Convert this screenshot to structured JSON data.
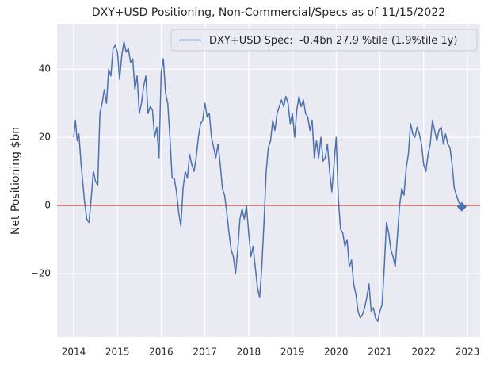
{
  "chart_data": {
    "type": "line",
    "title": "DXY+USD Positioning, Non-Commercial/Specs as of 11/15/2022",
    "y_label": "Net Positioning $bn",
    "x": [
      2014.0,
      2014.04,
      2014.08,
      2014.12,
      2014.17,
      2014.25,
      2014.3,
      2014.35,
      2014.4,
      2014.45,
      2014.5,
      2014.55,
      2014.6,
      2014.65,
      2014.7,
      2014.75,
      2014.8,
      2014.85,
      2014.9,
      2014.95,
      2015.0,
      2015.05,
      2015.1,
      2015.15,
      2015.2,
      2015.25,
      2015.3,
      2015.35,
      2015.4,
      2015.45,
      2015.5,
      2015.55,
      2015.6,
      2015.65,
      2015.7,
      2015.75,
      2015.8,
      2015.85,
      2015.9,
      2015.95,
      2016.0,
      2016.05,
      2016.1,
      2016.15,
      2016.2,
      2016.25,
      2016.3,
      2016.35,
      2016.4,
      2016.45,
      2016.5,
      2016.55,
      2016.6,
      2016.65,
      2016.7,
      2016.75,
      2016.8,
      2016.85,
      2016.9,
      2016.95,
      2017.0,
      2017.05,
      2017.1,
      2017.15,
      2017.2,
      2017.25,
      2017.3,
      2017.35,
      2017.4,
      2017.45,
      2017.5,
      2017.55,
      2017.6,
      2017.65,
      2017.7,
      2017.75,
      2017.8,
      2017.85,
      2017.9,
      2017.95,
      2018.0,
      2018.05,
      2018.1,
      2018.15,
      2018.2,
      2018.25,
      2018.3,
      2018.35,
      2018.4,
      2018.45,
      2018.5,
      2018.55,
      2018.6,
      2018.65,
      2018.7,
      2018.75,
      2018.8,
      2018.85,
      2018.9,
      2018.95,
      2019.0,
      2019.05,
      2019.1,
      2019.15,
      2019.2,
      2019.25,
      2019.3,
      2019.35,
      2019.4,
      2019.45,
      2019.5,
      2019.55,
      2019.6,
      2019.65,
      2019.7,
      2019.75,
      2019.8,
      2019.85,
      2019.9,
      2019.95,
      2020.0,
      2020.05,
      2020.1,
      2020.15,
      2020.2,
      2020.25,
      2020.3,
      2020.35,
      2020.4,
      2020.45,
      2020.5,
      2020.55,
      2020.6,
      2020.65,
      2020.7,
      2020.75,
      2020.8,
      2020.85,
      2020.9,
      2020.95,
      2021.0,
      2021.05,
      2021.1,
      2021.15,
      2021.2,
      2021.25,
      2021.3,
      2021.35,
      2021.4,
      2021.45,
      2021.5,
      2021.55,
      2021.6,
      2021.65,
      2021.7,
      2021.75,
      2021.8,
      2021.85,
      2021.9,
      2021.95,
      2022.0,
      2022.05,
      2022.1,
      2022.15,
      2022.2,
      2022.25,
      2022.3,
      2022.35,
      2022.4,
      2022.45,
      2022.5,
      2022.55,
      2022.6,
      2022.65,
      2022.7,
      2022.75,
      2022.8,
      2022.87
    ],
    "series": [
      {
        "name": "DXY+USD Spec:  -0.4bn 27.9 %tile (1.9%tile 1y)",
        "color": "#4c72b0",
        "values": [
          20,
          25,
          19,
          21,
          12,
          1,
          -4,
          -5,
          2,
          10,
          7,
          6,
          27,
          30,
          34,
          30,
          40,
          38,
          46,
          47,
          45,
          37,
          44,
          48,
          45,
          46,
          42,
          43,
          34,
          38,
          27,
          30,
          35,
          38,
          27,
          29,
          28,
          20,
          23,
          14,
          39,
          43,
          33,
          30,
          20,
          8,
          8,
          4,
          -2,
          -6,
          5,
          10,
          8,
          15,
          12,
          10,
          14,
          20,
          24,
          25,
          30,
          26,
          27,
          20,
          17,
          14,
          18,
          12,
          5,
          3,
          -2,
          -8,
          -13,
          -15,
          -20,
          -13,
          -4,
          -1,
          -4,
          0,
          -8,
          -15,
          -12,
          -18,
          -24,
          -27,
          -18,
          -5,
          10,
          17,
          19,
          25,
          22,
          27,
          29,
          31,
          29,
          32,
          30,
          24,
          27,
          20,
          28,
          32,
          29,
          31,
          27,
          26,
          22,
          25,
          14,
          19,
          14,
          20,
          13,
          14,
          18,
          10,
          4,
          12,
          20,
          2,
          -7,
          -8,
          -12,
          -10,
          -18,
          -16,
          -23,
          -26,
          -31,
          -33,
          -32,
          -30,
          -27,
          -23,
          -31,
          -30,
          -33,
          -34,
          -31,
          -29,
          -18,
          -5,
          -8,
          -13,
          -15,
          -18,
          -9,
          0,
          5,
          3,
          11,
          15,
          24,
          21,
          20,
          23,
          21,
          18,
          12,
          10,
          15,
          18,
          25,
          22,
          19,
          22,
          23,
          18,
          21,
          18,
          17,
          12,
          5,
          3,
          1,
          -0.4
        ]
      }
    ],
    "xlim": [
      2013.62,
      2023.29
    ],
    "xticks": [
      2014,
      2015,
      2016,
      2017,
      2018,
      2019,
      2020,
      2021,
      2022,
      2023
    ],
    "ylim": [
      -38.6,
      53.3
    ],
    "yticks": [
      {
        "value": -20,
        "label": "−20"
      },
      0,
      20,
      40
    ],
    "hline": {
      "y": 0,
      "color": "#d62728"
    },
    "grid": true,
    "legend": "upper right"
  }
}
